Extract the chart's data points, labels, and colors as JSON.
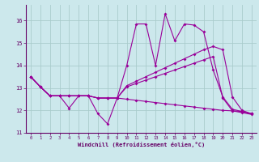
{
  "xlabel": "Windchill (Refroidissement éolien,°C)",
  "bg_color": "#cce8ec",
  "line_color": "#990099",
  "grid_color": "#aacccc",
  "text_color": "#660066",
  "xlim": [
    -0.5,
    23.5
  ],
  "ylim": [
    11.0,
    16.7
  ],
  "yticks": [
    11,
    12,
    13,
    14,
    15,
    16
  ],
  "xticks": [
    0,
    1,
    2,
    3,
    4,
    5,
    6,
    7,
    8,
    9,
    10,
    11,
    12,
    13,
    14,
    15,
    16,
    17,
    18,
    19,
    20,
    21,
    22,
    23
  ],
  "line1_x": [
    0,
    1,
    2,
    3,
    4,
    5,
    6,
    7,
    8,
    9,
    10,
    11,
    12,
    13,
    14,
    15,
    16,
    17,
    18,
    19,
    20,
    21,
    22,
    23
  ],
  "line1_y": [
    13.5,
    13.05,
    12.65,
    12.65,
    12.1,
    12.65,
    12.65,
    11.85,
    11.4,
    12.55,
    14.0,
    15.85,
    15.85,
    14.0,
    16.3,
    15.1,
    15.85,
    15.8,
    15.5,
    13.8,
    12.6,
    12.05,
    11.95,
    11.85
  ],
  "line2_x": [
    0,
    1,
    2,
    3,
    4,
    5,
    6,
    7,
    8,
    9,
    10,
    11,
    12,
    13,
    14,
    15,
    16,
    17,
    18,
    19,
    20,
    21,
    22,
    23
  ],
  "line2_y": [
    13.5,
    13.05,
    12.65,
    12.65,
    12.65,
    12.65,
    12.65,
    12.55,
    12.55,
    12.55,
    13.05,
    13.2,
    13.35,
    13.5,
    13.65,
    13.8,
    13.95,
    14.1,
    14.25,
    14.4,
    12.55,
    11.98,
    11.9,
    11.82
  ],
  "line3_x": [
    0,
    1,
    2,
    3,
    4,
    5,
    6,
    7,
    8,
    9,
    10,
    11,
    12,
    13,
    14,
    15,
    16,
    17,
    18,
    19,
    20,
    21,
    22,
    23
  ],
  "line3_y": [
    13.5,
    13.05,
    12.65,
    12.65,
    12.65,
    12.65,
    12.65,
    12.55,
    12.55,
    12.55,
    12.5,
    12.45,
    12.4,
    12.35,
    12.3,
    12.25,
    12.2,
    12.15,
    12.1,
    12.05,
    12.0,
    11.98,
    11.95,
    11.85
  ],
  "line4_x": [
    0,
    1,
    2,
    3,
    4,
    5,
    6,
    7,
    8,
    9,
    10,
    11,
    12,
    13,
    14,
    15,
    16,
    17,
    18,
    19,
    20,
    21,
    22,
    23
  ],
  "line4_y": [
    13.5,
    13.05,
    12.65,
    12.65,
    12.65,
    12.65,
    12.65,
    12.55,
    12.55,
    12.55,
    13.1,
    13.3,
    13.5,
    13.7,
    13.9,
    14.1,
    14.3,
    14.5,
    14.7,
    14.85,
    14.7,
    12.6,
    12.0,
    11.85
  ]
}
